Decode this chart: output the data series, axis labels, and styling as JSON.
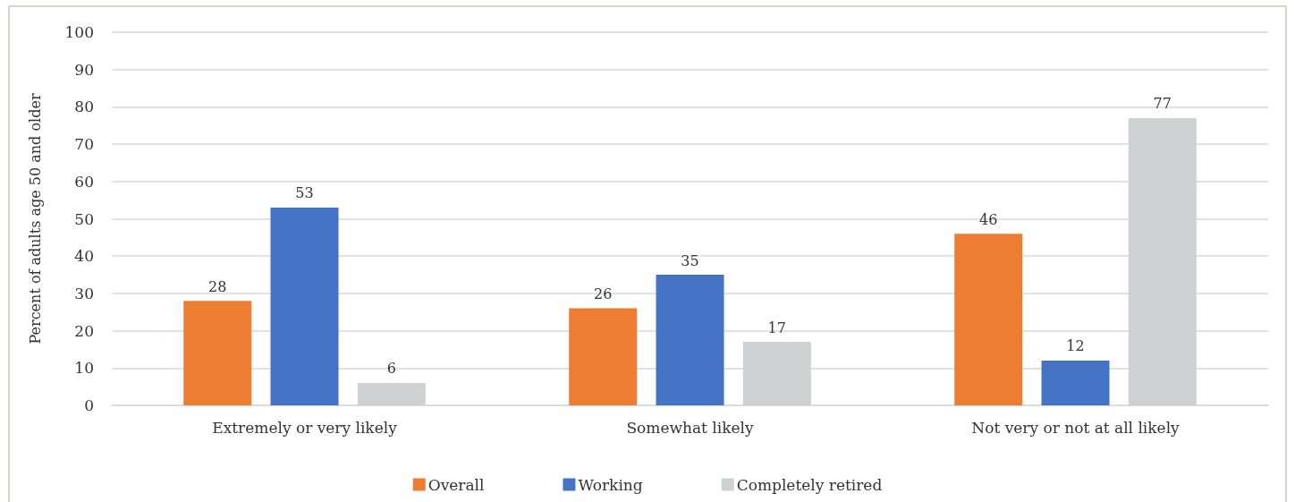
{
  "chart_data": {
    "type": "bar",
    "ylabel": "Percent of adults age 50 and older",
    "categories": [
      "Extremely or very likely",
      "Somewhat likely",
      "Not very or not at all likely"
    ],
    "series": [
      {
        "name": "Overall",
        "color": "#ed7d31",
        "values": [
          28,
          26,
          46
        ]
      },
      {
        "name": "Working",
        "color": "#4472c4",
        "values": [
          53,
          35,
          12
        ]
      },
      {
        "name": "Completely retired",
        "color": "#cfd0d2",
        "values": [
          6,
          17,
          77
        ]
      }
    ],
    "ylim": [
      0,
      100
    ],
    "yticks": [
      0,
      10,
      20,
      30,
      40,
      50,
      60,
      70,
      80,
      90,
      100
    ],
    "grid": "y",
    "legend": "bottom",
    "data_labels": true
  }
}
